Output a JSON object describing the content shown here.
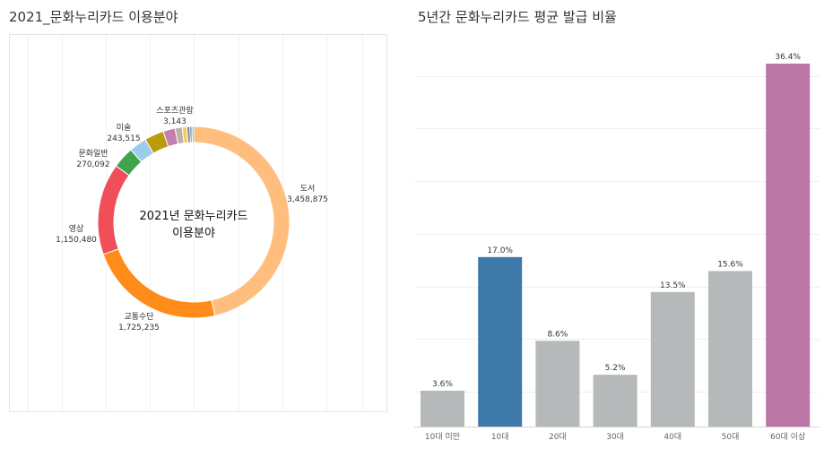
{
  "left_title": "2021_문화누리카드 이용분야",
  "right_title": "5년간 문화누리카드 평균 발급 비율",
  "chart_data": [
    {
      "type": "pie",
      "center_label": [
        "2021년 문화누리카드",
        "이용분야"
      ],
      "slices": [
        {
          "label": "도서",
          "value": 3458875,
          "value_label": "3,458,875",
          "color": "#FFBE7D",
          "labeled": true
        },
        {
          "label": "교통수단",
          "value": 1725235,
          "value_label": "1,725,235",
          "color": "#FF8C1A",
          "labeled": true
        },
        {
          "label": "영상",
          "value": 1150480,
          "value_label": "1,150,480",
          "color": "#F04F5A",
          "labeled": true
        },
        {
          "label": "문화일반",
          "value": 270092,
          "value_label": "270,092",
          "color": "#3EA34A",
          "labeled": true
        },
        {
          "label": "",
          "value": 220000,
          "value_label": "",
          "color": "#9BCCEB",
          "labeled": false
        },
        {
          "label": "미술",
          "value": 243515,
          "value_label": "243,515",
          "color": "#BC9B0B",
          "labeled": true
        },
        {
          "label": "",
          "value": 150000,
          "value_label": "",
          "color": "#C47FB0",
          "labeled": false
        },
        {
          "label": "",
          "value": 90000,
          "value_label": "",
          "color": "#BBB0AA",
          "labeled": false
        },
        {
          "label": "",
          "value": 60000,
          "value_label": "",
          "color": "#F2CF5B",
          "labeled": false
        },
        {
          "label": "",
          "value": 35000,
          "value_label": "",
          "color": "#7F7F7F",
          "labeled": false
        },
        {
          "label": "",
          "value": 25000,
          "value_label": "",
          "color": "#4E7FB3",
          "labeled": false
        },
        {
          "label": "스포츠관람",
          "value": 3143,
          "value_label": "3,143",
          "color": "#4E7FB3",
          "labeled": true
        },
        {
          "label": "",
          "value": 20000,
          "value_label": "",
          "color": "#4AA3A0",
          "labeled": false
        }
      ]
    },
    {
      "type": "bar",
      "categories": [
        "10대 미만",
        "10대",
        "20대",
        "30대",
        "40대",
        "50대",
        "60대 이상"
      ],
      "values": [
        3.6,
        17.0,
        8.6,
        5.2,
        13.5,
        15.6,
        36.4
      ],
      "value_labels": [
        "3.6%",
        "17.0%",
        "8.6%",
        "5.2%",
        "13.5%",
        "15.6%",
        "36.4%"
      ],
      "colors": [
        "#B5B9B9",
        "#3F79AA",
        "#B5B9B9",
        "#B5B9B9",
        "#B5B9B9",
        "#B5B9B9",
        "#BA77A5"
      ],
      "ylim": [
        0,
        36.4
      ],
      "grid": true
    }
  ]
}
